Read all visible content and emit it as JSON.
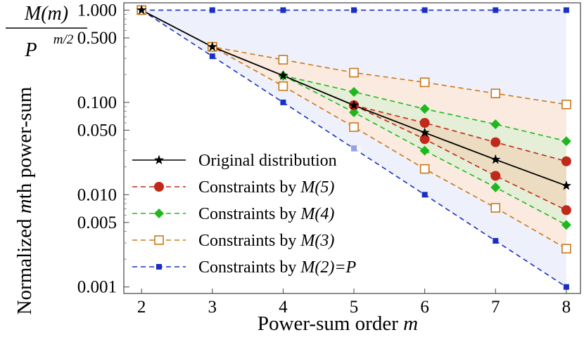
{
  "chart_data": {
    "type": "line",
    "yscale": "log",
    "xlabel": "Power-sum order ",
    "xlabel_var": "m",
    "ylabel": "Normalized ",
    "ylabel_var": "m",
    "ylabel_suffix": "th power-sum",
    "corner_label": {
      "numerator": "M(m)",
      "denominator": "P",
      "exponent": "m/2"
    },
    "xlim": [
      1.75,
      8.2
    ],
    "ylim": [
      0.00085,
      1.2
    ],
    "x_ticks": [
      2,
      3,
      4,
      5,
      6,
      7,
      8
    ],
    "y_ticks": [
      {
        "value": 1.0,
        "label": "1.000"
      },
      {
        "value": 0.5,
        "label": "0.500"
      },
      {
        "value": 0.1,
        "label": "0.100"
      },
      {
        "value": 0.05,
        "label": "0.050"
      },
      {
        "value": 0.01,
        "label": "0.010"
      },
      {
        "value": 0.005,
        "label": "0.005"
      },
      {
        "value": 0.001,
        "label": "0.001"
      }
    ],
    "x": [
      2,
      3,
      4,
      5,
      6,
      7,
      8
    ],
    "series": [
      {
        "key": "m2",
        "name": "Constraints by M(2)=P",
        "name_prefix": "Constraints by ",
        "name_var": "M(2)=P",
        "color": "#1a2fc4",
        "marker": "filled-square",
        "upper": [
          1.0,
          1.0,
          1.0,
          1.0,
          1.0,
          1.0,
          1.0
        ],
        "lower": [
          1.0,
          0.316,
          0.1,
          0.0316,
          0.01,
          0.00316,
          0.001
        ]
      },
      {
        "key": "m3",
        "name": "Constraints by M(3)",
        "name_prefix": "Constraints by ",
        "name_var": "M(3)",
        "color": "#c8781a",
        "marker": "open-square",
        "upper": [
          1.0,
          0.4,
          0.29,
          0.21,
          0.165,
          0.125,
          0.095
        ],
        "lower": [
          1.0,
          0.4,
          0.15,
          0.054,
          0.019,
          0.0072,
          0.0026
        ]
      },
      {
        "key": "m4",
        "name": "Constraints by M(4)",
        "name_prefix": "Constraints by ",
        "name_var": "M(4)",
        "color": "#1eb81e",
        "marker": "diamond",
        "upper": [
          null,
          null,
          0.195,
          0.13,
          0.085,
          0.058,
          0.038
        ],
        "lower": [
          null,
          null,
          0.195,
          0.078,
          0.03,
          0.012,
          0.0047
        ]
      },
      {
        "key": "m5",
        "name": "Constraints by M(5)",
        "name_prefix": "Constraints by ",
        "name_var": "M(5)",
        "color": "#c0281a",
        "marker": "circle",
        "upper": [
          null,
          null,
          null,
          0.093,
          0.06,
          0.037,
          0.023
        ],
        "lower": [
          null,
          null,
          null,
          0.093,
          0.04,
          0.016,
          0.0068
        ]
      },
      {
        "key": "orig",
        "name": "Original distribution",
        "name_prefix": "Original distribution",
        "name_var": "",
        "color": "#000000",
        "marker": "star",
        "values": [
          1.0,
          0.4,
          0.195,
          0.093,
          0.047,
          0.024,
          0.0125
        ]
      }
    ],
    "legend_order": [
      "orig",
      "m5",
      "m4",
      "m3",
      "m2"
    ],
    "legend_position": "bottom-left"
  }
}
